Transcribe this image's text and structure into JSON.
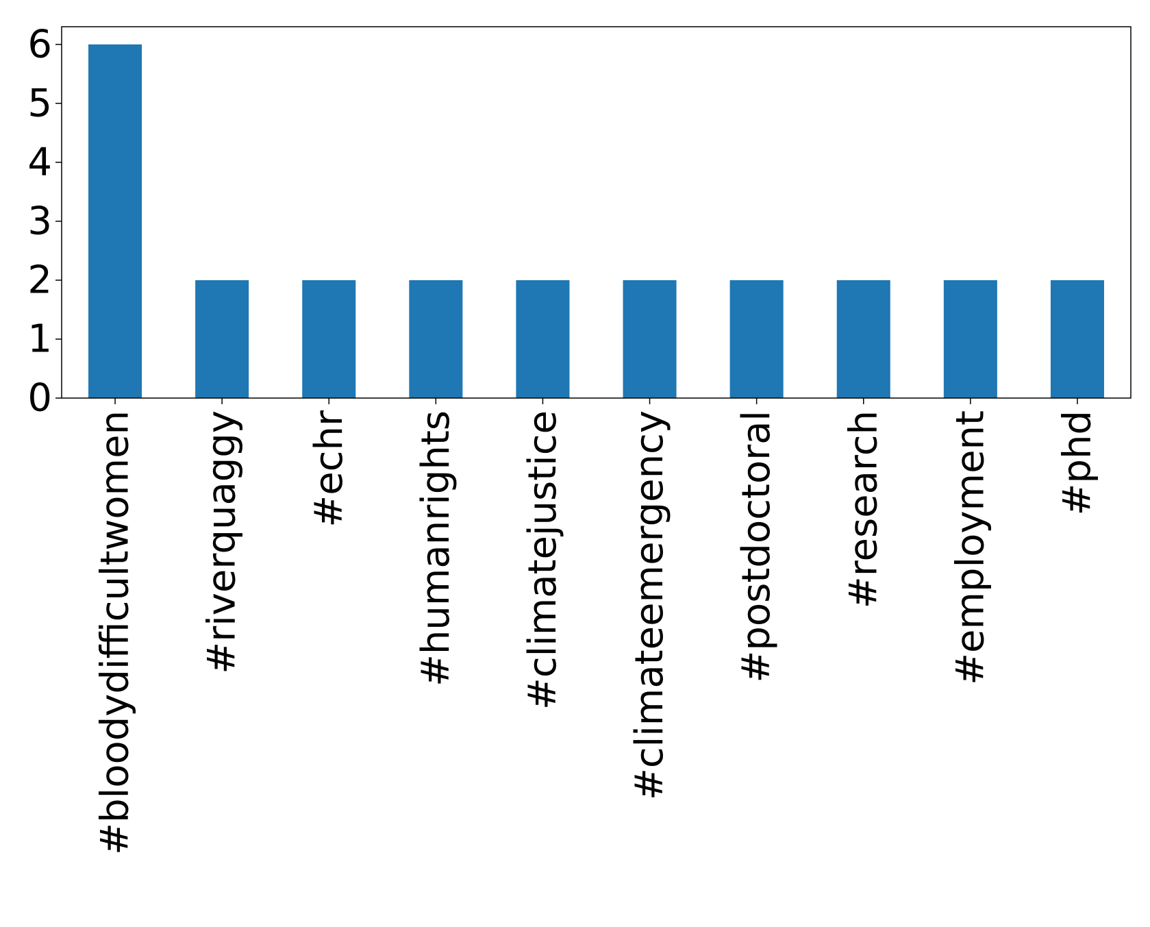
{
  "chart_data": {
    "type": "bar",
    "title": "",
    "xlabel": "",
    "ylabel": "",
    "categories": [
      "#bloodydifficultwomen",
      "#riverquaggy",
      "#echr",
      "#humanrights",
      "#climatejustice",
      "#climateemergency",
      "#postdoctoral",
      "#research",
      "#employment",
      "#phd"
    ],
    "values": [
      6,
      2,
      2,
      2,
      2,
      2,
      2,
      2,
      2,
      2
    ],
    "ylim": [
      0,
      6.3
    ],
    "yticks": [
      0,
      1,
      2,
      3,
      4,
      5,
      6
    ],
    "grid": false,
    "legend": "none",
    "bar_color": "#1f77b4"
  }
}
